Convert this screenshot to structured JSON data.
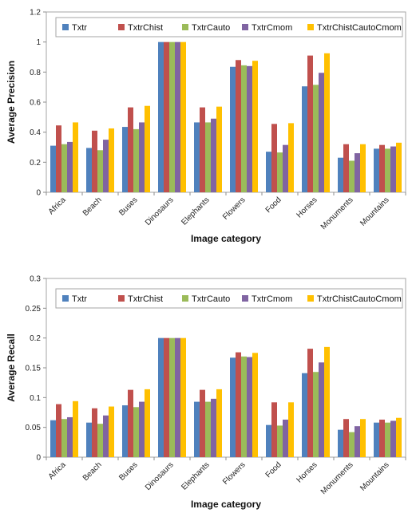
{
  "chart_data": [
    {
      "type": "bar",
      "ylabel": "Average Precision",
      "xlabel": "Image category",
      "ylim": [
        0,
        1.2
      ],
      "ytick_step": 0.2,
      "ytick_labels": [
        "0",
        "0.2",
        "0.4",
        "0.6",
        "0.8",
        "1",
        "1.2"
      ],
      "grid": false,
      "legend_position": "top",
      "categories": [
        "Africa",
        "Beach",
        "Buses",
        "Dinosaurs",
        "Elephants",
        "Flowers",
        "Food",
        "Horses",
        "Monuments",
        "Mountains"
      ],
      "series": [
        {
          "name": "Txtr",
          "color": "#4F81BD",
          "values": [
            0.31,
            0.295,
            0.435,
            1.0,
            0.465,
            0.835,
            0.27,
            0.705,
            0.23,
            0.29
          ]
        },
        {
          "name": "TxtrChist",
          "color": "#C0504D",
          "values": [
            0.445,
            0.41,
            0.565,
            1.0,
            0.565,
            0.88,
            0.455,
            0.91,
            0.32,
            0.315
          ]
        },
        {
          "name": "TxtrCauto",
          "color": "#9BBB59",
          "values": [
            0.32,
            0.28,
            0.42,
            1.0,
            0.465,
            0.845,
            0.265,
            0.715,
            0.21,
            0.29
          ]
        },
        {
          "name": "TxtrCmom",
          "color": "#8064A2",
          "values": [
            0.335,
            0.35,
            0.465,
            1.0,
            0.49,
            0.84,
            0.315,
            0.795,
            0.26,
            0.305
          ]
        },
        {
          "name": "TxtrChistCautoCmom",
          "color": "#FFC000",
          "values": [
            0.465,
            0.425,
            0.575,
            1.0,
            0.57,
            0.875,
            0.46,
            0.925,
            0.32,
            0.33
          ]
        }
      ]
    },
    {
      "type": "bar",
      "ylabel": "Average Recall",
      "xlabel": "Image category",
      "ylim": [
        0,
        0.3
      ],
      "ytick_step": 0.05,
      "ytick_labels": [
        "0",
        "0.05",
        "0.1",
        "0.15",
        "0.2",
        "0.25",
        "0.3"
      ],
      "grid": false,
      "legend_position": "top",
      "categories": [
        "Africa",
        "Beach",
        "Buses",
        "Dinosaurs",
        "Elephants",
        "Flowers",
        "Food",
        "Horses",
        "Monuments",
        "Mountains"
      ],
      "series": [
        {
          "name": "Txtr",
          "color": "#4F81BD",
          "values": [
            0.062,
            0.058,
            0.087,
            0.2,
            0.093,
            0.167,
            0.054,
            0.141,
            0.046,
            0.058
          ]
        },
        {
          "name": "TxtrChist",
          "color": "#C0504D",
          "values": [
            0.089,
            0.082,
            0.113,
            0.2,
            0.113,
            0.176,
            0.092,
            0.182,
            0.064,
            0.063
          ]
        },
        {
          "name": "TxtrCauto",
          "color": "#9BBB59",
          "values": [
            0.064,
            0.056,
            0.084,
            0.2,
            0.093,
            0.169,
            0.053,
            0.143,
            0.042,
            0.058
          ]
        },
        {
          "name": "TxtrCmom",
          "color": "#8064A2",
          "values": [
            0.067,
            0.07,
            0.093,
            0.2,
            0.098,
            0.168,
            0.063,
            0.159,
            0.052,
            0.061
          ]
        },
        {
          "name": "TxtrChistCautoCmom",
          "color": "#FFC000",
          "values": [
            0.094,
            0.085,
            0.114,
            0.2,
            0.114,
            0.175,
            0.092,
            0.185,
            0.064,
            0.066
          ]
        }
      ]
    }
  ]
}
